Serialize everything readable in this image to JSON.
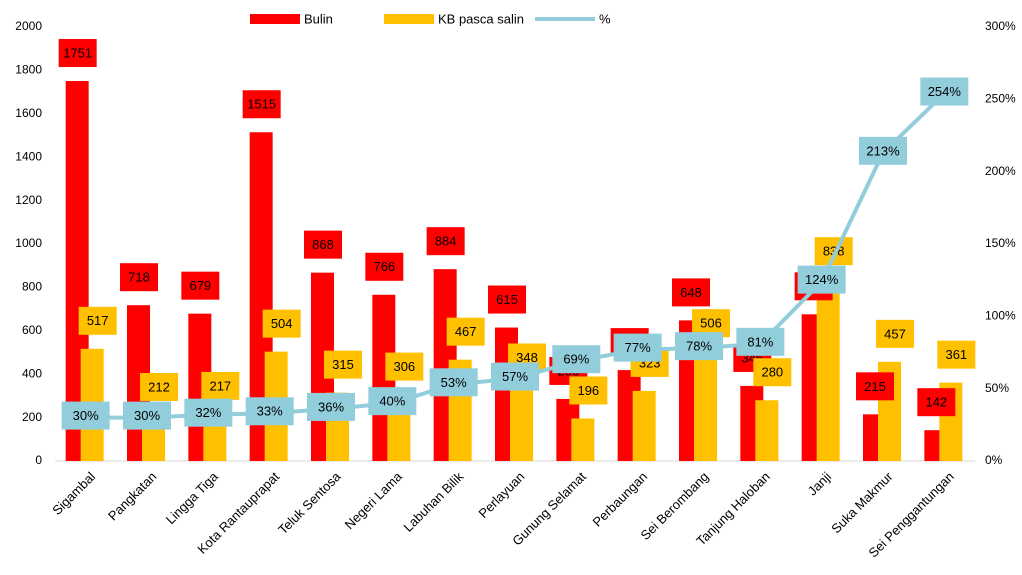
{
  "chart_data": {
    "type": "bar_line",
    "categories": [
      "Sigambal",
      "Pangkatan",
      "Lingga Tiga",
      "Kota Rantauprapat",
      "Teluk Sentosa",
      "Negeri Lama",
      "Labuhan Bilik",
      "Perlayuan",
      "Gunung Selamat",
      "Perbaungan",
      "Sei Berombang",
      "Tanjung Haloban",
      "Janji",
      "Suka Makmur",
      "Sei Penggantungan"
    ],
    "series": [
      {
        "name": "Bulin",
        "color": "#ff0000",
        "values": [
          1751,
          718,
          679,
          1515,
          868,
          766,
          884,
          615,
          286,
          419,
          648,
          346,
          676,
          215,
          142
        ]
      },
      {
        "name": "KB pasca salin",
        "color": "#ffc000",
        "values": [
          517,
          212,
          217,
          504,
          315,
          306,
          467,
          348,
          196,
          323,
          506,
          280,
          838,
          457,
          361
        ]
      },
      {
        "name": "%",
        "color": "#92cddc",
        "axis": "y2",
        "values": [
          30,
          30,
          32,
          33,
          36,
          40,
          53,
          57,
          69,
          77,
          78,
          81,
          124,
          213,
          254
        ],
        "value_labels": [
          "30%",
          "30%",
          "32%",
          "33%",
          "36%",
          "40%",
          "53%",
          "57%",
          "69%",
          "77%",
          "78%",
          "81%",
          "124%",
          "213%",
          "254%"
        ]
      }
    ],
    "ylim": [
      0,
      2000
    ],
    "yticks": [
      0,
      200,
      400,
      600,
      800,
      1000,
      1200,
      1400,
      1600,
      1800,
      2000
    ],
    "y2lim": [
      0,
      300
    ],
    "y2ticks": [
      {
        "value": 0,
        "label": "0%"
      },
      {
        "value": 50,
        "label": "50%"
      },
      {
        "value": 100,
        "label": "100%"
      },
      {
        "value": 150,
        "label": "150%"
      },
      {
        "value": 200,
        "label": "200%"
      },
      {
        "value": 250,
        "label": "250%"
      },
      {
        "value": 300,
        "label": "300%"
      }
    ],
    "legend": "top"
  }
}
